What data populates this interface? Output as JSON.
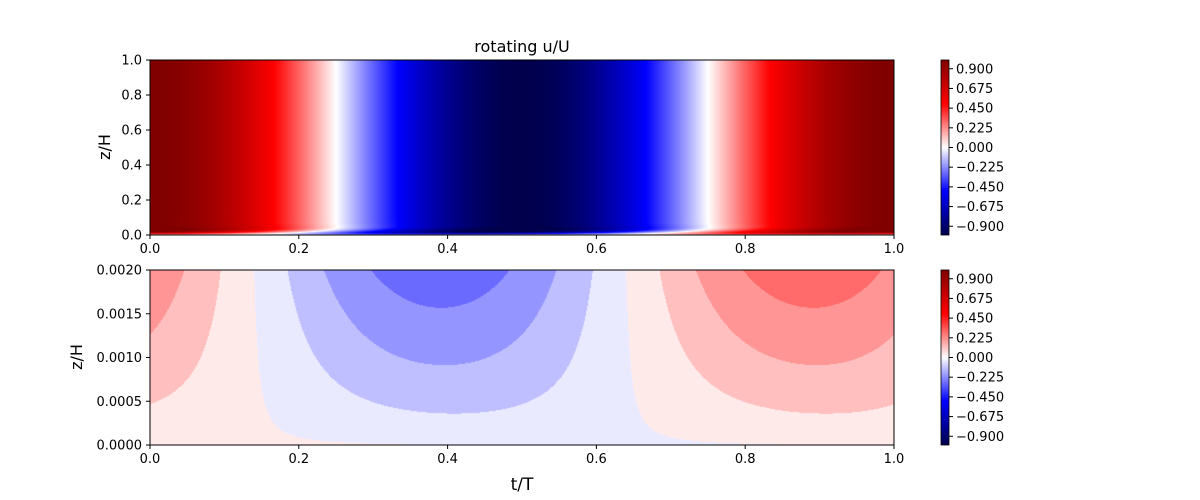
{
  "chart_data": [
    {
      "type": "heatmap",
      "title": "rotating u/U",
      "xlabel": "",
      "ylabel": "z/H",
      "xlim": [
        0.0,
        1.0
      ],
      "ylim": [
        0.0,
        1.0
      ],
      "x_ticks": [
        "0.0",
        "0.2",
        "0.4",
        "0.6",
        "0.8",
        "1.0"
      ],
      "y_ticks": [
        "0.0",
        "0.2",
        "0.4",
        "0.6",
        "0.8",
        "1.0"
      ],
      "colormap": "seismic",
      "colorbar": {
        "range": [
          -1.0,
          1.0
        ],
        "ticks": [
          "0.900",
          "0.675",
          "0.450",
          "0.225",
          "0.000",
          "−0.225",
          "−0.450",
          "−0.675",
          "−0.900"
        ],
        "placement": "right"
      },
      "field": {
        "outer": "cos(2*pi*t/T)",
        "zero_crossings_t": [
          0.25,
          0.75
        ],
        "max_t": [
          0.0,
          1.0
        ],
        "min_t": 0.5,
        "thin_bottom_boundary_layer": true
      }
    },
    {
      "type": "heatmap",
      "title": "",
      "xlabel": "t/T",
      "ylabel": "z/H",
      "xlim": [
        0.0,
        1.0
      ],
      "ylim": [
        0.0,
        0.002
      ],
      "x_ticks": [
        "0.0",
        "0.2",
        "0.4",
        "0.6",
        "0.8",
        "1.0"
      ],
      "y_ticks": [
        "0.0000",
        "0.0005",
        "0.0010",
        "0.0015",
        "0.0020"
      ],
      "colormap": "seismic",
      "colorbar": {
        "range": [
          -1.0,
          1.0
        ],
        "ticks": [
          "0.900",
          "0.675",
          "0.450",
          "0.225",
          "0.000",
          "−0.225",
          "−0.450",
          "−0.675",
          "−0.900"
        ],
        "placement": "right"
      },
      "field": {
        "near_wall_zoom": true,
        "zero_crossings_t": [
          0.14,
          0.64
        ],
        "min_t": 0.39,
        "max_t": 0.89,
        "peak_value_at_top": 0.3,
        "filled_contours": true
      }
    }
  ]
}
